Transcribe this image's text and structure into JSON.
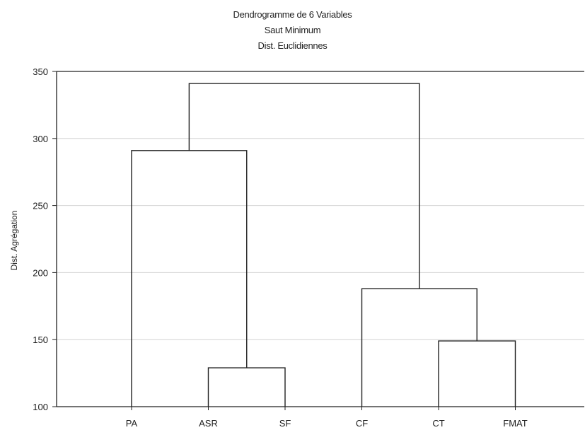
{
  "chart_data": {
    "type": "dendrogram",
    "title": "Dendrogramme de 6   Variables",
    "subtitle": [
      "Saut Minimum",
      "Dist. Euclidiennes"
    ],
    "ylabel": "Dist. Agrégation",
    "xlabel": "",
    "ylim": [
      100,
      350
    ],
    "yticks": [
      100,
      150,
      200,
      250,
      300,
      350
    ],
    "grid": true,
    "leaves": [
      "PA",
      "ASR",
      "SF",
      "CF",
      "CT",
      "FMAT"
    ],
    "merges": [
      {
        "left": "ASR",
        "right": "SF",
        "height": 129
      },
      {
        "left": "CT",
        "right": "FMAT",
        "height": 149
      },
      {
        "left": "CF",
        "right": "CT+FMAT",
        "height": 188
      },
      {
        "left": "PA",
        "right": "ASR+SF",
        "height": 291
      },
      {
        "left": "PA+ASR+SF",
        "right": "CF+CT+FMAT",
        "height": 341
      }
    ]
  }
}
